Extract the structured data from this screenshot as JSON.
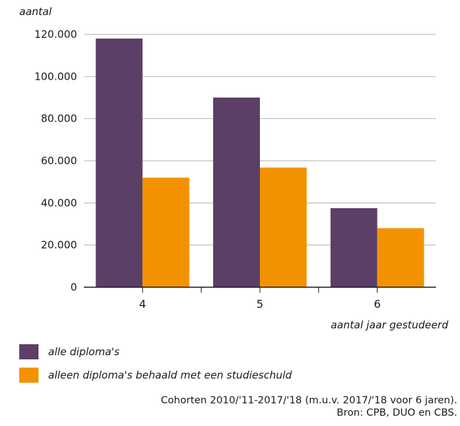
{
  "chart_data": {
    "type": "bar",
    "ylabel": "aantal",
    "xlabel": "aantal jaar gestudeerd",
    "categories": [
      "4",
      "5",
      "6"
    ],
    "ylim": [
      0,
      120000
    ],
    "yticks": [
      0,
      20000,
      40000,
      60000,
      80000,
      100000,
      120000
    ],
    "ytick_labels": [
      "0",
      "20.000",
      "40.000",
      "60.000",
      "80.000",
      "100.000",
      "120.000"
    ],
    "grid": true,
    "legend_position": "bottom-left",
    "series": [
      {
        "name": "alle diploma's",
        "color": "#5b3f66",
        "values": [
          118000,
          90000,
          37500
        ]
      },
      {
        "name": "alleen diploma's behaald met een studieschuld",
        "color": "#f39200",
        "values": [
          52000,
          56800,
          28000
        ]
      }
    ]
  },
  "source": {
    "line1": "Cohorten 2010/'11-2017/'18 (m.u.v. 2017/'18 voor 6 jaren).",
    "line2": "Bron: CPB, DUO en CBS."
  }
}
